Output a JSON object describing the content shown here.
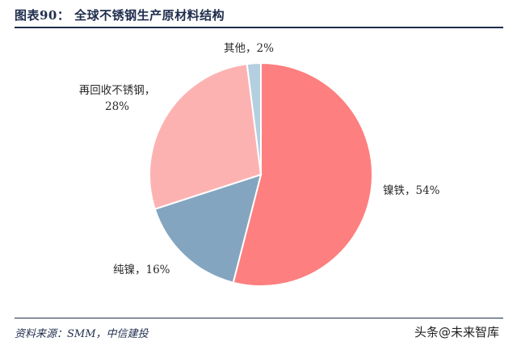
{
  "header": {
    "title": "图表90：   全球不锈钢生产原材料结构"
  },
  "footer": {
    "source": "资料来源：SMM，中信建投",
    "watermark": "头条@未来智库"
  },
  "chart_data": {
    "type": "pie",
    "title": "全球不锈钢生产原材料结构",
    "slices": [
      {
        "name": "镍铁",
        "value": 54,
        "color": "#fe7f7f",
        "label_lines": [
          "镍铁，54%"
        ]
      },
      {
        "name": "纯镍",
        "value": 16,
        "color": "#84a5bf",
        "label_lines": [
          "纯镍，16%"
        ]
      },
      {
        "name": "再回收不锈钢",
        "value": 28,
        "color": "#fdb2b2",
        "label_lines": [
          "再回收不锈钢，",
          "28%"
        ]
      },
      {
        "name": "其他",
        "value": 2,
        "color": "#b4cfe0",
        "label_lines": [
          "其他，2%"
        ]
      }
    ]
  }
}
